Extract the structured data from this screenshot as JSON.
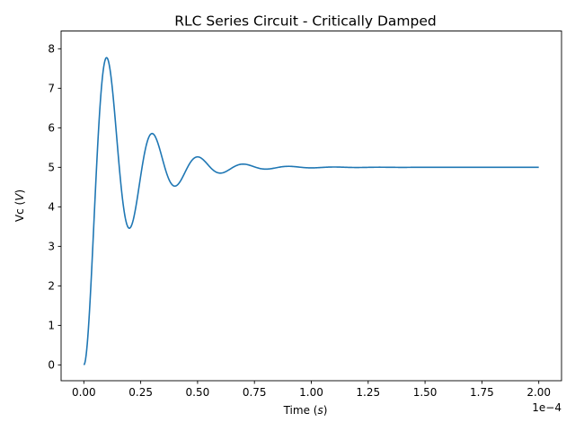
{
  "chart_data": {
    "type": "line",
    "title": "RLC Series Circuit - Critically Damped",
    "xlabel_text": "Time (",
    "xlabel_var": "s",
    "xlabel_close": ")",
    "ylabel_text": "Vc (",
    "ylabel_var": "V",
    "ylabel_close": ")",
    "x_offset_label": "1e−4",
    "x_scale": 0.0001,
    "xlim": [
      -0.1,
      2.1
    ],
    "ylim": [
      -0.4,
      8.45
    ],
    "xticks": [
      0.0,
      0.25,
      0.5,
      0.75,
      1.0,
      1.25,
      1.5,
      1.75,
      2.0
    ],
    "xtick_labels": [
      "0.00",
      "0.25",
      "0.50",
      "0.75",
      "1.00",
      "1.25",
      "1.50",
      "1.75",
      "2.00"
    ],
    "yticks": [
      0,
      1,
      2,
      3,
      4,
      5,
      6,
      7,
      8
    ],
    "ytick_labels": [
      "0",
      "1",
      "2",
      "3",
      "4",
      "5",
      "6",
      "7",
      "8"
    ],
    "grid": false,
    "series": [
      {
        "color": "#1f77b4",
        "model": {
          "steady_state": 5.0,
          "amplitude": 5.0,
          "damping_time_s": 1.7e-05,
          "period_s": 2e-05,
          "t_start_s": 0.0,
          "t_end_s": 0.0002,
          "samples": 800
        },
        "key_points": [
          {
            "x": 0.0,
            "y": 0.0
          },
          {
            "x": 0.1,
            "y": 8.03
          },
          {
            "x": 0.2,
            "y": 3.2
          },
          {
            "x": 0.3,
            "y": 6.1
          },
          {
            "x": 0.4,
            "y": 4.35
          },
          {
            "x": 0.5,
            "y": 5.4
          },
          {
            "x": 0.6,
            "y": 4.77
          },
          {
            "x": 0.7,
            "y": 5.14
          },
          {
            "x": 0.8,
            "y": 4.92
          },
          {
            "x": 0.9,
            "y": 5.05
          },
          {
            "x": 1.0,
            "y": 4.97
          },
          {
            "x": 1.25,
            "y": 5.0
          },
          {
            "x": 2.0,
            "y": 5.0
          }
        ]
      }
    ]
  }
}
